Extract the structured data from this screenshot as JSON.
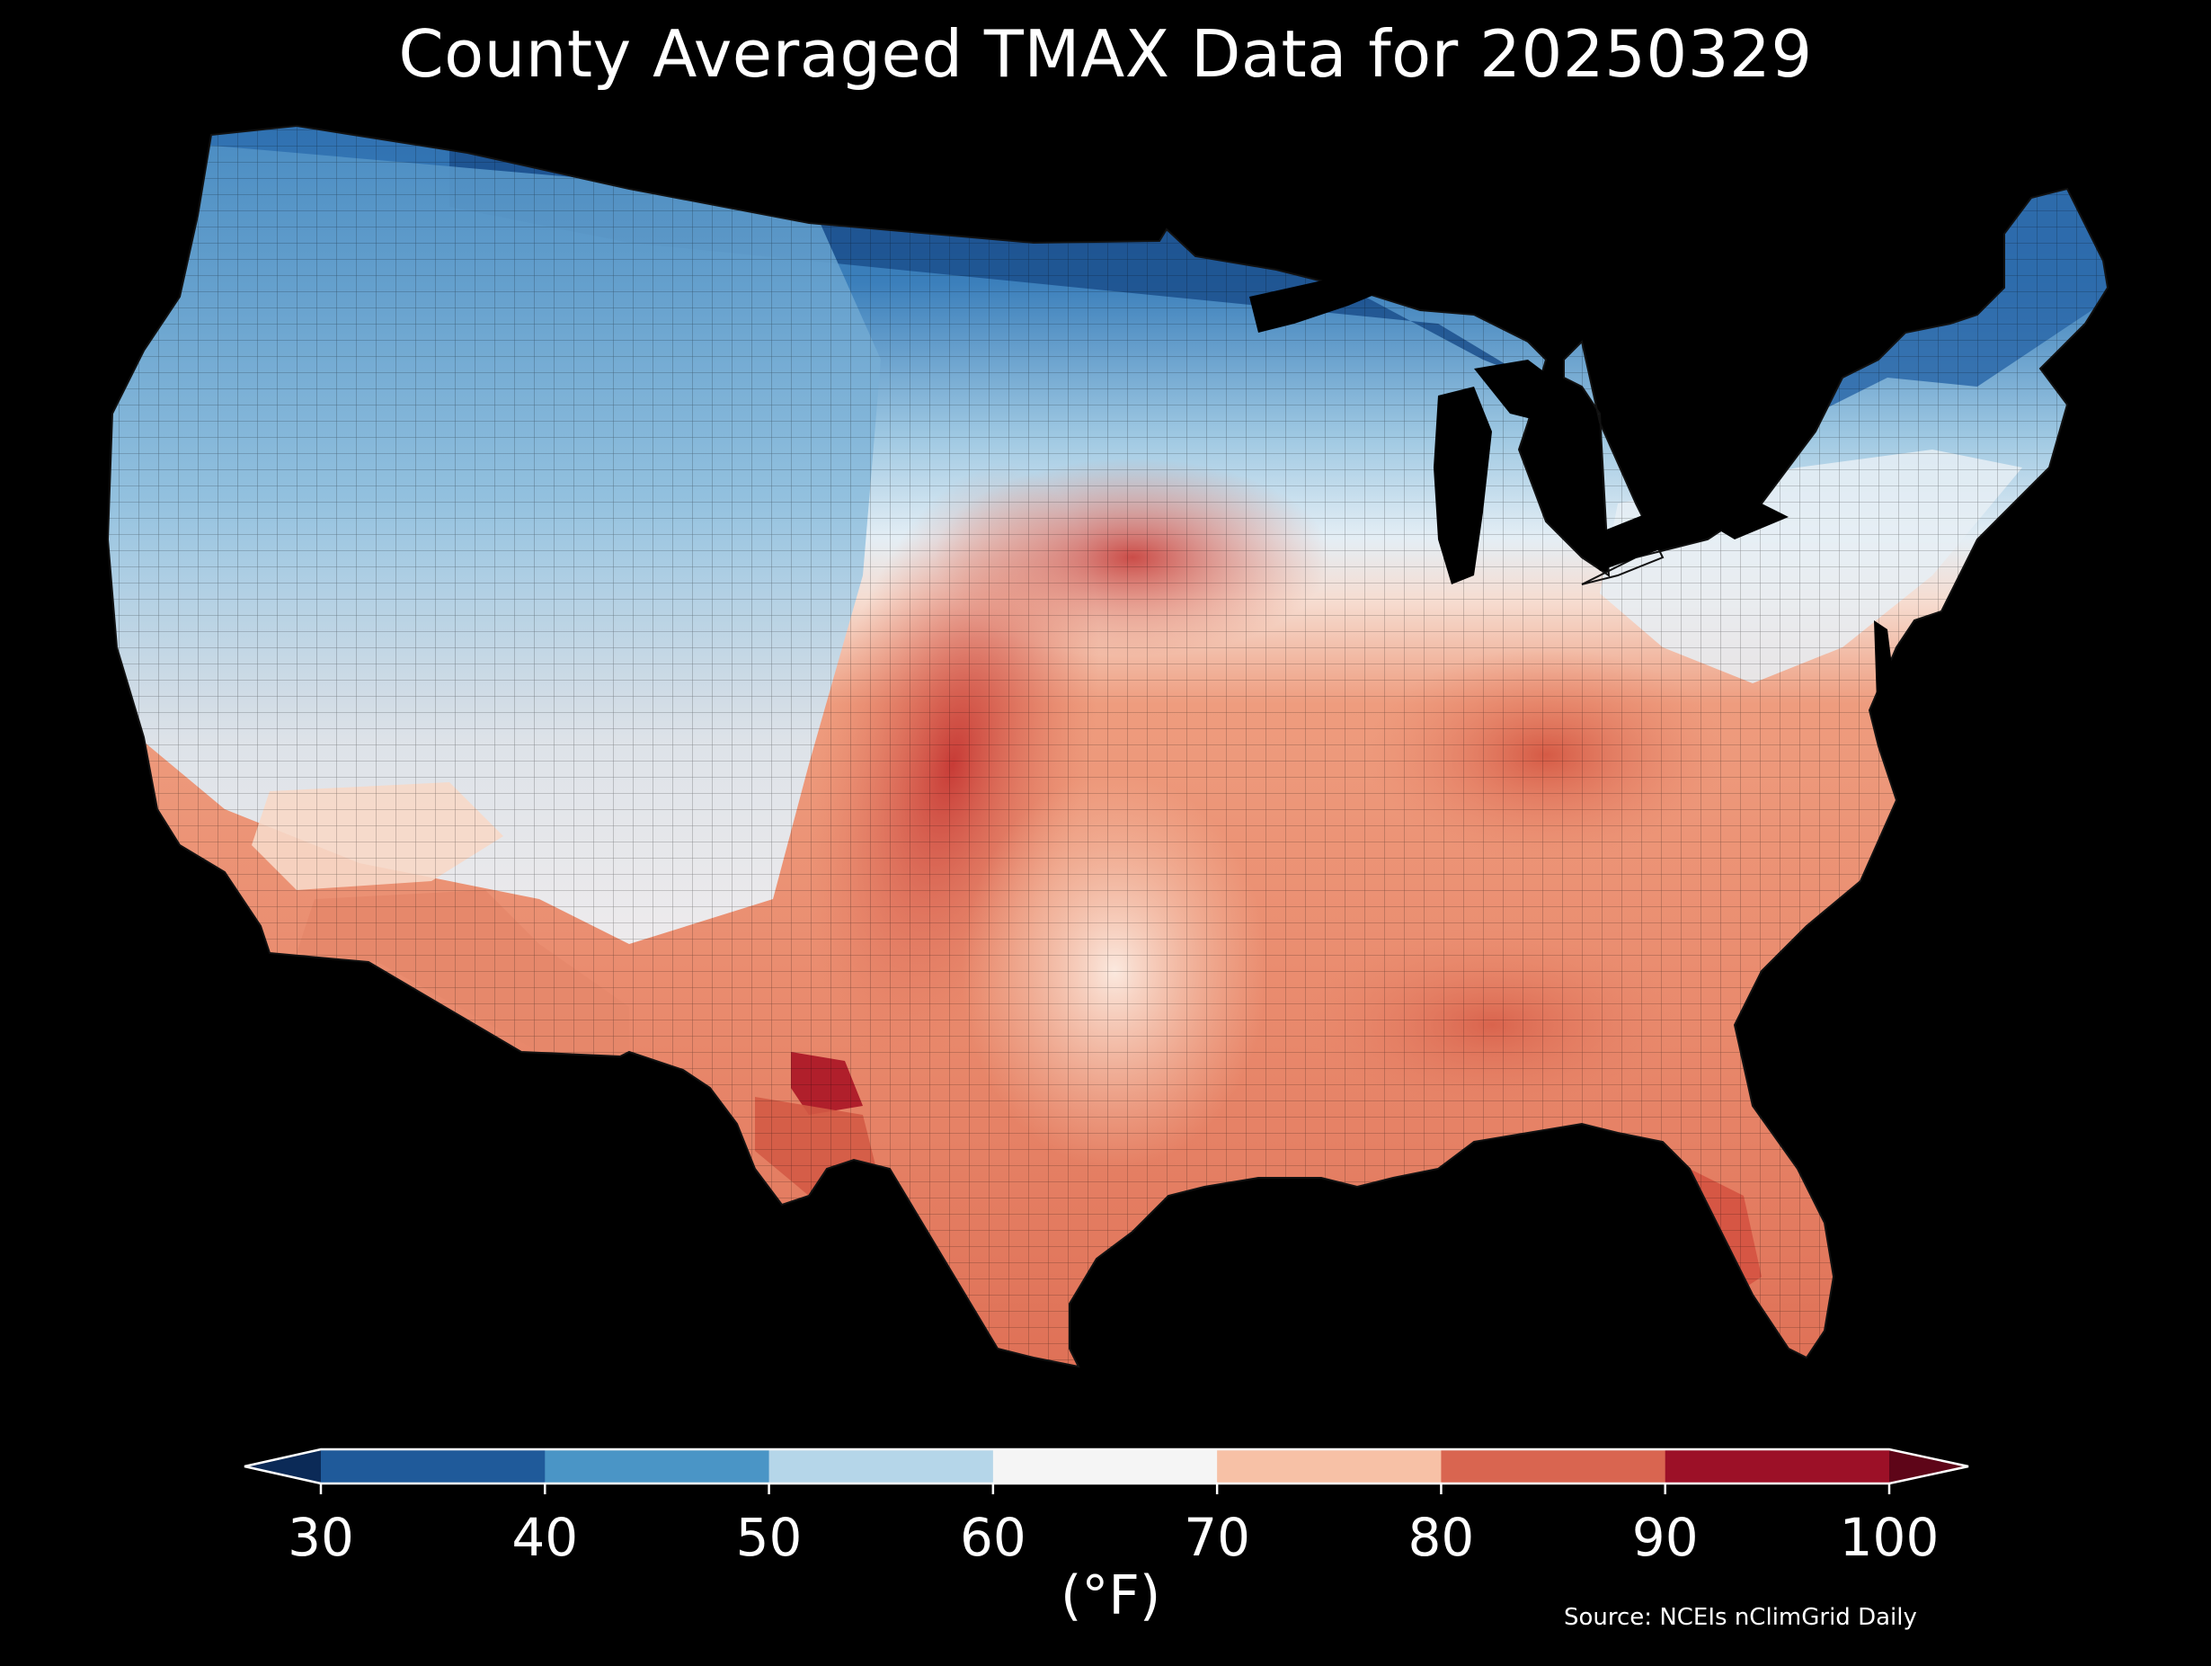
{
  "title": "County Averaged TMAX Data for 20250329",
  "source": "Source: NCEIs nClimGrid Daily",
  "colorbar": {
    "unit": "(°F)",
    "ticks": [
      "30",
      "40",
      "50",
      "60",
      "70",
      "80",
      "90",
      "100"
    ],
    "extend": "both",
    "bins": [
      {
        "range": "<30",
        "color": "#0b2a57"
      },
      {
        "range": "30-40",
        "color": "#1f5a9a"
      },
      {
        "range": "40-50",
        "color": "#4a95c6"
      },
      {
        "range": "50-60",
        "color": "#b5d6e9"
      },
      {
        "range": "60-70",
        "color": "#f5f5f5"
      },
      {
        "range": "70-80",
        "color": "#f7c1a6"
      },
      {
        "range": "80-90",
        "color": "#d96550"
      },
      {
        "range": "90-100",
        "color": "#9c1027"
      },
      {
        "range": ">100",
        "color": "#5e0518"
      }
    ]
  },
  "map": {
    "region": "Contiguous United States",
    "unit_of_shading": "county",
    "variable": "TMAX",
    "colors": {
      "water": "#000000",
      "cold_north": "#1f5a9a",
      "cool_west": "#7db5d9",
      "mild": "#dcebf4",
      "neutral": "#f2f2f2",
      "warm": "#f3ab8a",
      "hot_plains": "#d9543f",
      "hottest_texas": "#b8202c"
    }
  }
}
